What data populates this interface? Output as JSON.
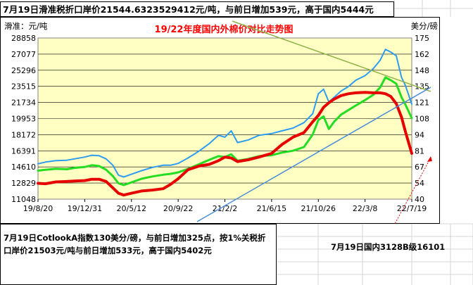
{
  "top_note": "7月19日滑准税折口岸价21544.6323529412元/吨，与前日增加539元，高于国内5444元",
  "bottom_left_note": "7月19日CotlookA指数130美分/磅，与前日增加325点，按1%关税折口岸价21503元/吨与前日增加533元，高于国内5402元",
  "bottom_right_note": "7月19日国内3128B级16101",
  "colors": {
    "red": "#e60000",
    "green": "#22dd22",
    "blue": "#2e9cf0",
    "plot_bg": "#ffffc4",
    "title": "#ff0000",
    "trend_green": "#8fb24a",
    "trend_blue": "#4a8cd8"
  },
  "chart_data": {
    "type": "line",
    "title": "19/22年度国内外棉价对比走势图",
    "ylabel_left": "滑准：元/吨",
    "ylabel_right": "美分/磅",
    "x_ticks": [
      "19/8/20",
      "19/12/31",
      "20/5/12",
      "20/9/22",
      "21/2/2",
      "21/6/15",
      "21/10/26",
      "22/3/8",
      "22/7/19"
    ],
    "y_left_ticks": [
      11048,
      12829,
      14610,
      16391,
      18172,
      19953,
      21734,
      23515,
      25296,
      27077,
      28858
    ],
    "y_right_ticks": [
      40,
      54,
      67,
      81,
      94,
      108,
      121,
      135,
      148,
      162,
      175
    ],
    "ylim_left": [
      11048,
      28858
    ],
    "ylim_right": [
      40,
      175
    ],
    "grid": true,
    "series": [
      {
        "key": "blue",
        "axis": "left",
        "points": [
          [
            "19/8/20",
            14950
          ],
          [
            "19/9/10",
            15150
          ],
          [
            "19/10/10",
            15300
          ],
          [
            "19/11/10",
            15350
          ],
          [
            "19/12/1",
            15500
          ],
          [
            "19/12/31",
            15700
          ],
          [
            "20/1/20",
            15900
          ],
          [
            "20/2/10",
            15850
          ],
          [
            "20/3/1",
            15500
          ],
          [
            "20/3/20",
            14800
          ],
          [
            "20/4/5",
            13700
          ],
          [
            "20/4/20",
            13500
          ],
          [
            "20/5/12",
            13800
          ],
          [
            "20/6/10",
            14200
          ],
          [
            "20/7/10",
            14550
          ],
          [
            "20/8/10",
            14800
          ],
          [
            "20/9/1",
            14800
          ],
          [
            "20/9/22",
            15000
          ],
          [
            "20/10/20",
            15600
          ],
          [
            "20/11/20",
            16350
          ],
          [
            "20/12/20",
            17200
          ],
          [
            "21/1/15",
            18100
          ],
          [
            "21/2/2",
            17900
          ],
          [
            "21/2/20",
            18600
          ],
          [
            "21/3/10",
            17300
          ],
          [
            "21/4/10",
            17600
          ],
          [
            "21/5/10",
            18100
          ],
          [
            "21/6/15",
            18300
          ],
          [
            "21/7/15",
            18600
          ],
          [
            "21/8/15",
            18900
          ],
          [
            "21/9/15",
            19500
          ],
          [
            "21/10/10",
            20500
          ],
          [
            "21/10/26",
            22700
          ],
          [
            "21/11/10",
            23200
          ],
          [
            "21/11/25",
            21800
          ],
          [
            "21/12/10",
            22300
          ],
          [
            "21/12/30",
            23000
          ],
          [
            "22/1/20",
            23500
          ],
          [
            "22/2/10",
            24200
          ],
          [
            "22/3/8",
            24700
          ],
          [
            "22/4/1",
            25500
          ],
          [
            "22/4/20",
            26400
          ],
          [
            "22/5/5",
            27600
          ],
          [
            "22/5/20",
            27300
          ],
          [
            "22/6/5",
            26900
          ],
          [
            "22/6/20",
            24500
          ],
          [
            "22/7/1",
            23600
          ],
          [
            "22/7/19",
            21550
          ]
        ]
      },
      {
        "key": "green",
        "axis": "left",
        "points": [
          [
            "19/8/20",
            14200
          ],
          [
            "19/9/10",
            14300
          ],
          [
            "19/10/10",
            14400
          ],
          [
            "19/11/10",
            14350
          ],
          [
            "19/12/1",
            14500
          ],
          [
            "19/12/31",
            14600
          ],
          [
            "20/1/20",
            14800
          ],
          [
            "20/2/10",
            14700
          ],
          [
            "20/3/1",
            14300
          ],
          [
            "20/3/20",
            13600
          ],
          [
            "20/4/5",
            12800
          ],
          [
            "20/4/20",
            12600
          ],
          [
            "20/5/12",
            12900
          ],
          [
            "20/6/10",
            13300
          ],
          [
            "20/7/10",
            13550
          ],
          [
            "20/8/10",
            13750
          ],
          [
            "20/9/1",
            13850
          ],
          [
            "20/9/22",
            14000
          ],
          [
            "20/10/20",
            14400
          ],
          [
            "20/11/20",
            14900
          ],
          [
            "20/12/20",
            15400
          ],
          [
            "21/1/15",
            15800
          ],
          [
            "21/2/2",
            15700
          ],
          [
            "21/2/20",
            16000
          ],
          [
            "21/3/10",
            15300
          ],
          [
            "21/4/10",
            15500
          ],
          [
            "21/5/10",
            15800
          ],
          [
            "21/6/15",
            15900
          ],
          [
            "21/7/15",
            16200
          ],
          [
            "21/8/15",
            16400
          ],
          [
            "21/9/15",
            16800
          ],
          [
            "21/10/10",
            18200
          ],
          [
            "21/10/26",
            19800
          ],
          [
            "21/11/10",
            20200
          ],
          [
            "21/11/25",
            18800
          ],
          [
            "21/12/10",
            19600
          ],
          [
            "21/12/30",
            20400
          ],
          [
            "22/1/20",
            20900
          ],
          [
            "22/2/10",
            21400
          ],
          [
            "22/3/8",
            22000
          ],
          [
            "22/4/1",
            22600
          ],
          [
            "22/4/20",
            23400
          ],
          [
            "22/5/5",
            24500
          ],
          [
            "22/5/20",
            24200
          ],
          [
            "22/6/5",
            23800
          ],
          [
            "22/6/20",
            22300
          ],
          [
            "22/7/1",
            21500
          ],
          [
            "22/7/19",
            20000
          ]
        ]
      },
      {
        "key": "red",
        "axis": "left",
        "points": [
          [
            "19/8/20",
            12800
          ],
          [
            "19/9/10",
            12750
          ],
          [
            "19/10/10",
            12950
          ],
          [
            "19/11/10",
            13000
          ],
          [
            "19/12/1",
            13050
          ],
          [
            "19/12/31",
            13100
          ],
          [
            "20/1/20",
            13250
          ],
          [
            "20/2/10",
            13250
          ],
          [
            "20/3/1",
            13000
          ],
          [
            "20/3/20",
            12300
          ],
          [
            "20/4/5",
            11700
          ],
          [
            "20/4/20",
            11500
          ],
          [
            "20/5/12",
            11700
          ],
          [
            "20/6/10",
            11950
          ],
          [
            "20/7/10",
            12050
          ],
          [
            "20/8/10",
            12200
          ],
          [
            "20/9/1",
            12700
          ],
          [
            "20/9/22",
            13300
          ],
          [
            "20/10/20",
            14300
          ],
          [
            "20/11/20",
            14700
          ],
          [
            "20/12/20",
            14900
          ],
          [
            "21/1/15",
            15300
          ],
          [
            "21/2/2",
            15700
          ],
          [
            "21/2/20",
            15600
          ],
          [
            "21/3/10",
            15200
          ],
          [
            "21/4/10",
            15400
          ],
          [
            "21/5/10",
            15700
          ],
          [
            "21/6/15",
            16100
          ],
          [
            "21/7/15",
            17100
          ],
          [
            "21/8/15",
            17900
          ],
          [
            "21/9/15",
            18400
          ],
          [
            "21/10/10",
            19600
          ],
          [
            "21/10/26",
            20300
          ],
          [
            "21/11/10",
            21200
          ],
          [
            "21/11/25",
            21700
          ],
          [
            "21/12/10",
            22100
          ],
          [
            "21/12/30",
            22500
          ],
          [
            "22/1/20",
            22700
          ],
          [
            "22/2/10",
            22800
          ],
          [
            "22/3/8",
            22850
          ],
          [
            "22/4/1",
            22800
          ],
          [
            "22/4/20",
            22800
          ],
          [
            "22/5/5",
            22700
          ],
          [
            "22/5/20",
            22400
          ],
          [
            "22/6/5",
            21600
          ],
          [
            "22/6/20",
            20100
          ],
          [
            "22/7/1",
            18500
          ],
          [
            "22/7/19",
            16100
          ]
        ]
      }
    ]
  }
}
